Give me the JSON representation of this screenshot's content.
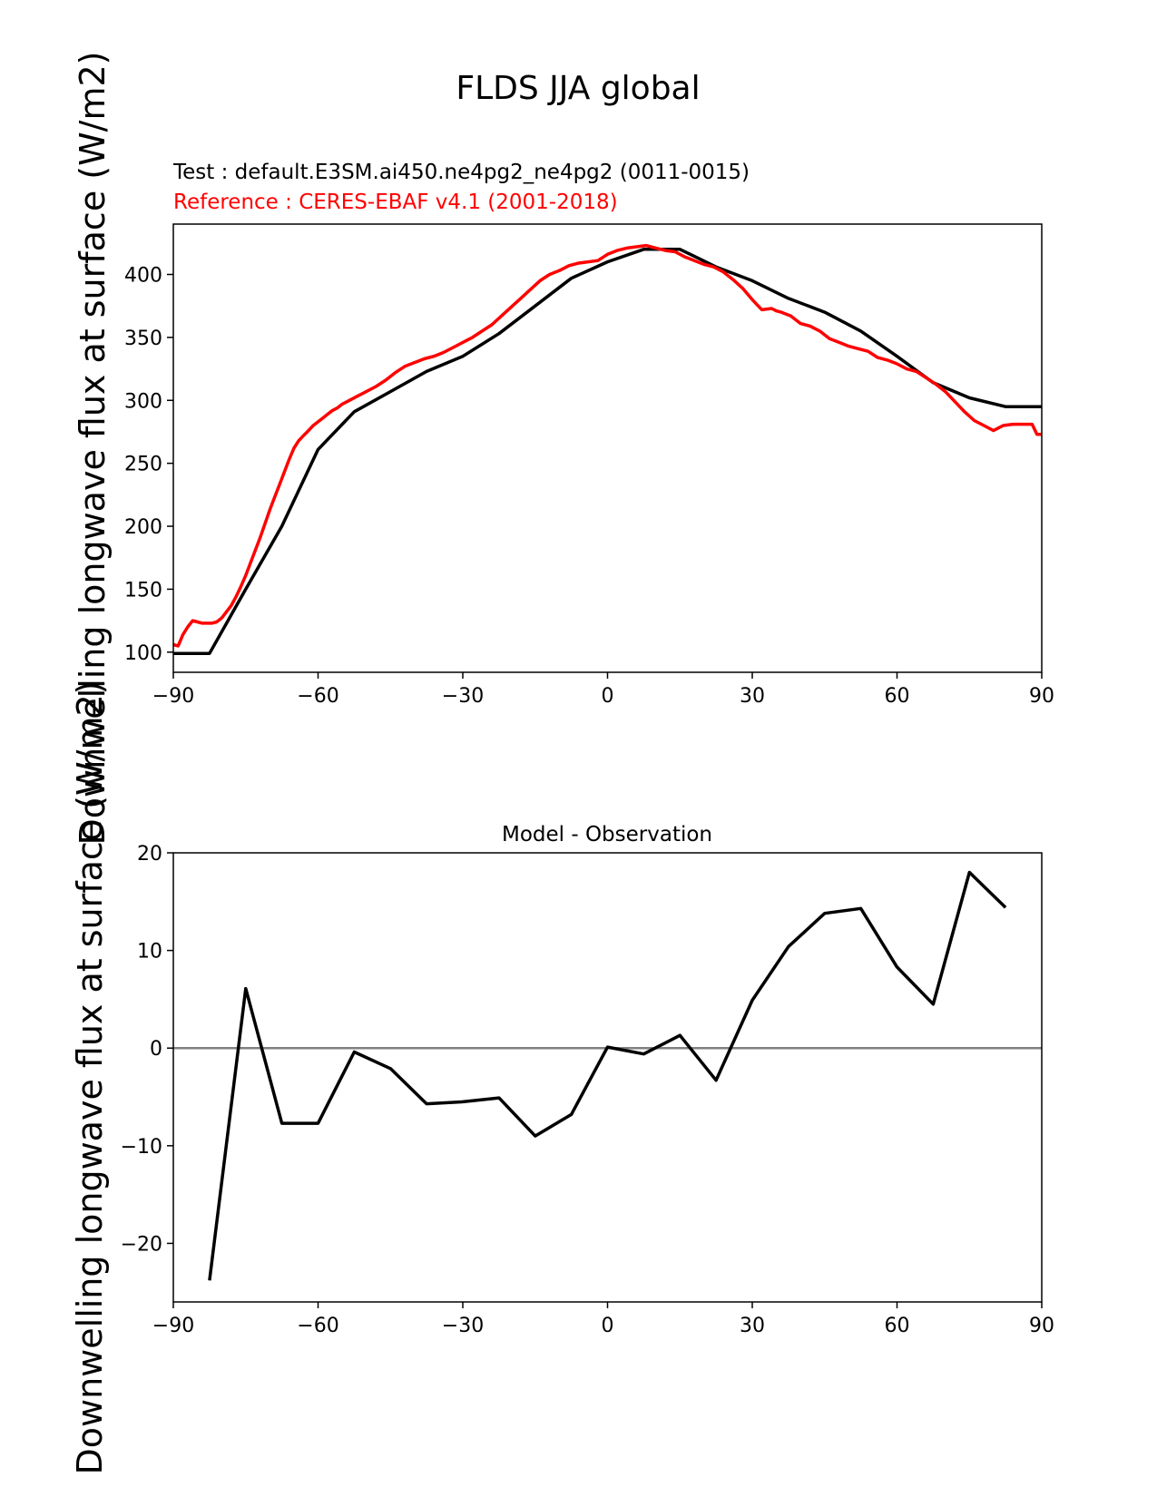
{
  "figure": {
    "title": "FLDS JJA global"
  },
  "chart_data": [
    {
      "type": "line",
      "subtitle_test": "Test : default.E3SM.ai450.ne4pg2_ne4pg2 (0011-0015)",
      "subtitle_reference": "Reference : CERES-EBAF v4.1 (2001-2018)",
      "xlabel": "",
      "ylabel": "Downwelling longwave flux at surface (W/m2)",
      "xlim": [
        -90,
        90
      ],
      "ylim": [
        84,
        440
      ],
      "xticks": [
        -90,
        -60,
        -30,
        0,
        30,
        60,
        90
      ],
      "xtick_labels": [
        "−90",
        "−60",
        "−30",
        "0",
        "30",
        "60",
        "90"
      ],
      "yticks": [
        100,
        150,
        200,
        250,
        300,
        350,
        400
      ],
      "ytick_labels": [
        "100",
        "150",
        "200",
        "250",
        "300",
        "350",
        "400"
      ],
      "grid": false,
      "series": [
        {
          "color": "#000000",
          "x": [
            -90,
            -82.5,
            -75,
            -67.5,
            -60,
            -52.5,
            -45,
            -37.5,
            -30,
            -22.5,
            -15,
            -7.5,
            0,
            7.5,
            15,
            22.5,
            30,
            37.5,
            45,
            52.5,
            60,
            67.5,
            75,
            82.5,
            90
          ],
          "y": [
            99,
            99,
            150,
            200,
            261,
            291,
            307,
            323,
            335,
            353,
            375,
            397,
            410,
            420,
            420,
            406,
            395,
            381,
            370,
            355,
            335,
            314,
            302,
            295,
            295
          ]
        },
        {
          "color": "#ff0000",
          "x": [
            -90,
            -89,
            -88,
            -87,
            -86,
            -85,
            -84,
            -83,
            -82,
            -81,
            -80,
            -79,
            -78,
            -77,
            -76,
            -75,
            -74,
            -73,
            -72,
            -71,
            -70,
            -69,
            -68,
            -67,
            -66,
            -65,
            -64,
            -63,
            -62,
            -61,
            -60,
            -59,
            -58,
            -57,
            -56,
            -55,
            -54,
            -53,
            -52,
            -51,
            -50,
            -48,
            -46,
            -44,
            -42,
            -40,
            -38,
            -36,
            -34,
            -32,
            -30,
            -28,
            -26,
            -24,
            -22,
            -20,
            -18,
            -16,
            -14,
            -12,
            -10,
            -8,
            -6,
            -4,
            -2,
            0,
            2,
            4,
            6,
            8,
            10,
            12,
            14,
            16,
            18,
            20,
            22,
            24,
            26,
            28,
            30,
            32,
            34,
            35,
            36,
            38,
            40,
            42,
            44,
            46,
            48,
            50,
            52,
            54,
            56,
            58,
            60,
            62,
            64,
            66,
            68,
            70,
            72,
            74,
            76,
            78,
            80,
            82,
            84,
            86,
            88,
            89,
            90
          ],
          "y": [
            106,
            105,
            114,
            120,
            125,
            124,
            123,
            123,
            123,
            124,
            127,
            132,
            137,
            144,
            152,
            161,
            171,
            181,
            191,
            202,
            213,
            223,
            233,
            243,
            253,
            262,
            268,
            272,
            276,
            280,
            283,
            286,
            289,
            292,
            294,
            297,
            299,
            301,
            303,
            305,
            307,
            311,
            316,
            322,
            327,
            330,
            333,
            335,
            338,
            342,
            346,
            350,
            355,
            360,
            367,
            374,
            381,
            388,
            395,
            400,
            403,
            407,
            409,
            410,
            411,
            416,
            419,
            421,
            422,
            423,
            421,
            419,
            418,
            414,
            411,
            408,
            406,
            402,
            396,
            389,
            380,
            372,
            373,
            371,
            370,
            367,
            361,
            359,
            355,
            349,
            346,
            343,
            341,
            339,
            334,
            332,
            329,
            325,
            323,
            318,
            313,
            307,
            299,
            291,
            284,
            280,
            276,
            280,
            281,
            281,
            281,
            273,
            273
          ]
        }
      ]
    },
    {
      "type": "line",
      "title": "Model - Observation",
      "xlabel": "",
      "ylabel": "Downwelling longwave flux at surface (W/m2)",
      "xlim": [
        -90,
        90
      ],
      "ylim": [
        -26,
        20
      ],
      "xticks": [
        -90,
        -60,
        -30,
        0,
        30,
        60,
        90
      ],
      "xtick_labels": [
        "−90",
        "−60",
        "−30",
        "0",
        "30",
        "60",
        "90"
      ],
      "yticks": [
        -20,
        -10,
        0,
        10,
        20
      ],
      "ytick_labels": [
        "−20",
        "−10",
        "0",
        "10",
        "20"
      ],
      "grid": false,
      "zero_line": {
        "y": 0,
        "color": "#808080"
      },
      "series": [
        {
          "color": "#000000",
          "x": [
            -82.5,
            -75,
            -67.5,
            -60,
            -52.5,
            -45,
            -37.5,
            -30,
            -22.5,
            -15,
            -7.5,
            0,
            7.5,
            15,
            22.5,
            30,
            37.5,
            45,
            52.5,
            60,
            67.5,
            75,
            82.5
          ],
          "y": [
            -23.8,
            6.1,
            -7.7,
            -7.7,
            -0.4,
            -2.1,
            -5.7,
            -5.5,
            -5.1,
            -9.0,
            -6.8,
            0.1,
            -0.6,
            1.3,
            -3.3,
            4.9,
            10.4,
            13.8,
            14.3,
            8.3,
            4.5,
            18.0,
            14.4
          ]
        }
      ]
    }
  ]
}
